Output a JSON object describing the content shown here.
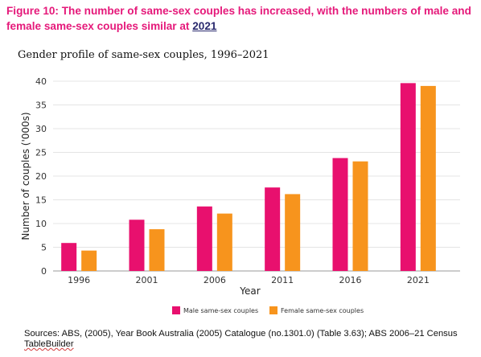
{
  "figure": {
    "title_main": "Figure 10: The number of same-sex couples has increased, with the numbers of male and female same-sex couples similar at ",
    "title_year": "2021",
    "subtitle": "Gender profile of same-sex couples, 1996–2021",
    "source_main": "Sources: ABS, (2005), Year Book Australia (2005) Catalogue (no.1301.0) (Table 3.63); ABS 2006–21 Census ",
    "source_tail": "TableBuilder"
  },
  "chart_data": {
    "type": "bar",
    "categories": [
      "1996",
      "2001",
      "2006",
      "2011",
      "2016",
      "2021"
    ],
    "series": [
      {
        "name": "Male same-sex couples",
        "color": "#e8106e",
        "values": [
          5.9,
          10.8,
          13.6,
          17.6,
          23.8,
          39.6
        ]
      },
      {
        "name": "Female same-sex couples",
        "color": "#f7941d",
        "values": [
          4.3,
          8.8,
          12.1,
          16.2,
          23.1,
          39.0
        ]
      }
    ],
    "xlabel": "Year",
    "ylabel": "Number of couples ('000s)",
    "ylim": [
      0,
      40
    ],
    "yticks": [
      "0",
      "5",
      "10",
      "15",
      "20",
      "25",
      "30",
      "35",
      "40"
    ],
    "grid": true,
    "legend": "bottom-center"
  }
}
